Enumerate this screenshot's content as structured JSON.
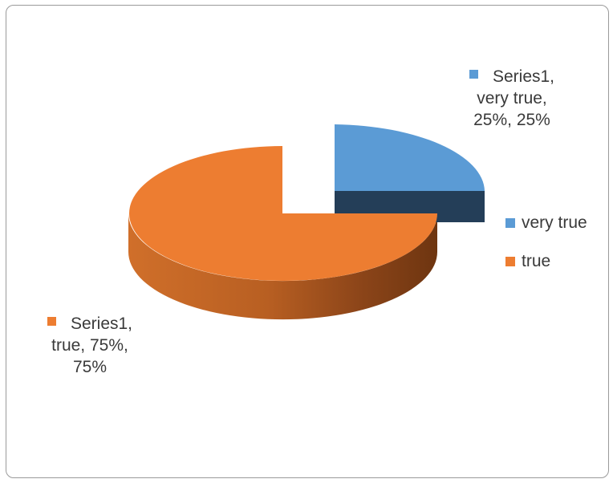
{
  "chart_data": {
    "type": "pie",
    "style": "3d-exploded",
    "categories": [
      "very true",
      "true"
    ],
    "values": [
      25,
      75
    ],
    "series": [
      {
        "name": "Series1",
        "values": [
          25,
          75
        ]
      }
    ],
    "colors": {
      "very true": "#5b9bd5",
      "true": "#ed7d31"
    },
    "legend_position": "right",
    "data_labels": {
      "very_true": [
        "Series1,",
        "very true,",
        "25%, 25%"
      ],
      "true": [
        "Series1,",
        "true, 75%,",
        "75%"
      ]
    }
  }
}
